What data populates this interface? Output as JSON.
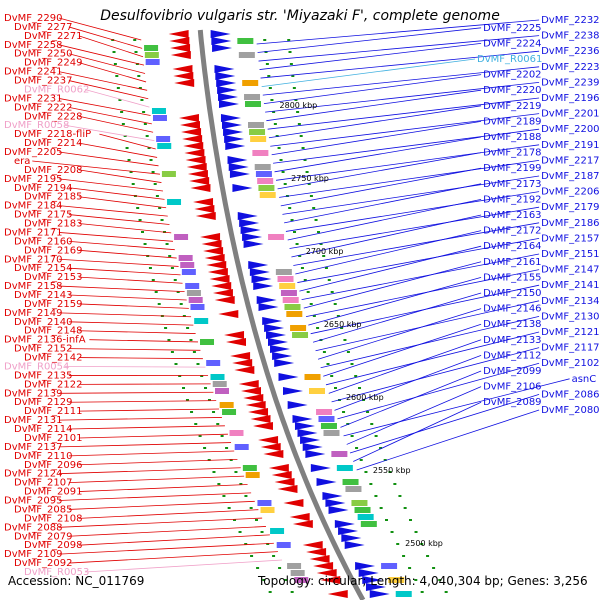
{
  "title": "Desulfovibrio vulgaris str. 'Miyazaki F', complete genome",
  "footer": {
    "accession": "Accession: NC_011769",
    "summary": "Topology: circular; Length: 4,040,304 bp; Genes: 3,256"
  },
  "colors": {
    "forward_strand": "#e00000",
    "reverse_strand": "#1010e0",
    "rna_gene": "#f0a0c8",
    "ncrna_gene": "#40b0e0",
    "backbone": "#808080",
    "tick_marks": "#109010"
  },
  "ticks": [
    "2800 kbp",
    "2750 kbp",
    "2700 kbp",
    "2650 kbp",
    "2600 kbp",
    "2550 kbp",
    "2500 kbp"
  ],
  "left_labels": [
    {
      "text": "DvMF_2290",
      "kind": "gene"
    },
    {
      "text": "DvMF_2277",
      "kind": "gene"
    },
    {
      "text": "DvMF_2271",
      "kind": "gene"
    },
    {
      "text": "DvMF_2258",
      "kind": "gene"
    },
    {
      "text": "DvMF_2250",
      "kind": "gene"
    },
    {
      "text": "DvMF_2249",
      "kind": "gene"
    },
    {
      "text": "DvMF_2241",
      "kind": "gene"
    },
    {
      "text": "DvMF_2237",
      "kind": "gene"
    },
    {
      "text": "DvMF_R0062",
      "kind": "rna"
    },
    {
      "text": "DvMF_2231",
      "kind": "gene"
    },
    {
      "text": "DvMF_2222",
      "kind": "gene"
    },
    {
      "text": "DvMF_2228",
      "kind": "gene"
    },
    {
      "text": "DvMF_R0058",
      "kind": "rna"
    },
    {
      "text": "DvMF_2218-fliP",
      "kind": "gene"
    },
    {
      "text": "DvMF_2214",
      "kind": "gene"
    },
    {
      "text": "DvMF_2205",
      "kind": "gene"
    },
    {
      "text": "era",
      "kind": "gene"
    },
    {
      "text": "DvMF_2208",
      "kind": "gene"
    },
    {
      "text": "DvMF_2195",
      "kind": "gene"
    },
    {
      "text": "DvMF_2194",
      "kind": "gene"
    },
    {
      "text": "DvMF_2185",
      "kind": "gene"
    },
    {
      "text": "DvMF_2184",
      "kind": "gene"
    },
    {
      "text": "DvMF_2175",
      "kind": "gene"
    },
    {
      "text": "DvMF_2183",
      "kind": "gene"
    },
    {
      "text": "DvMF_2171",
      "kind": "gene"
    },
    {
      "text": "DvMF_2160",
      "kind": "gene"
    },
    {
      "text": "DvMF_2169",
      "kind": "gene"
    },
    {
      "text": "DvMF_2170",
      "kind": "gene"
    },
    {
      "text": "DvMF_2154",
      "kind": "gene"
    },
    {
      "text": "DvMF_2153",
      "kind": "gene"
    },
    {
      "text": "DvMF_2158",
      "kind": "gene"
    },
    {
      "text": "DvMF_2143",
      "kind": "gene"
    },
    {
      "text": "DvMF_2159",
      "kind": "gene"
    },
    {
      "text": "DvMF_2149",
      "kind": "gene"
    },
    {
      "text": "DvMF_2140",
      "kind": "gene"
    },
    {
      "text": "DvMF_2148",
      "kind": "gene"
    },
    {
      "text": "DvMF_2136-infA",
      "kind": "gene"
    },
    {
      "text": "DvMF_2152",
      "kind": "gene"
    },
    {
      "text": "DvMF_2142",
      "kind": "gene"
    },
    {
      "text": "DvMF_R0054",
      "kind": "rna"
    },
    {
      "text": "DvMF_2135",
      "kind": "gene"
    },
    {
      "text": "DvMF_2122",
      "kind": "gene"
    },
    {
      "text": "DvMF_2139",
      "kind": "gene"
    },
    {
      "text": "DvMF_2129",
      "kind": "gene"
    },
    {
      "text": "DvMF_2111",
      "kind": "gene"
    },
    {
      "text": "DvMF_2131",
      "kind": "gene"
    },
    {
      "text": "DvMF_2114",
      "kind": "gene"
    },
    {
      "text": "DvMF_2101",
      "kind": "gene"
    },
    {
      "text": "DvMF_2137",
      "kind": "gene"
    },
    {
      "text": "DvMF_2110",
      "kind": "gene"
    },
    {
      "text": "DvMF_2096",
      "kind": "gene"
    },
    {
      "text": "DvMF_2124",
      "kind": "gene"
    },
    {
      "text": "DvMF_2107",
      "kind": "gene"
    },
    {
      "text": "DvMF_2091",
      "kind": "gene"
    },
    {
      "text": "DvMF_2095",
      "kind": "gene"
    },
    {
      "text": "DvMF_2085",
      "kind": "gene"
    },
    {
      "text": "DvMF_2108",
      "kind": "gene"
    },
    {
      "text": "DvMF_2088",
      "kind": "gene"
    },
    {
      "text": "DvMF_2079",
      "kind": "gene"
    },
    {
      "text": "DvMF_2098",
      "kind": "gene"
    },
    {
      "text": "DvMF_2109",
      "kind": "gene"
    },
    {
      "text": "DvMF_2092",
      "kind": "gene"
    },
    {
      "text": "DvMF_R0053",
      "kind": "rna"
    }
  ],
  "right_labels": [
    {
      "text": "DvMF_2232",
      "kind": "gene"
    },
    {
      "text": "DvMF_2225",
      "kind": "gene"
    },
    {
      "text": "DvMF_2238",
      "kind": "gene"
    },
    {
      "text": "DvMF_2224",
      "kind": "gene"
    },
    {
      "text": "DvMF_2236",
      "kind": "gene"
    },
    {
      "text": "DvMF_R0061",
      "kind": "ncrna"
    },
    {
      "text": "DvMF_2223",
      "kind": "gene"
    },
    {
      "text": "DvMF_2202",
      "kind": "gene"
    },
    {
      "text": "DvMF_2239",
      "kind": "gene"
    },
    {
      "text": "DvMF_2220",
      "kind": "gene"
    },
    {
      "text": "DvMF_2196",
      "kind": "gene"
    },
    {
      "text": "DvMF_2219",
      "kind": "gene"
    },
    {
      "text": "DvMF_2201",
      "kind": "gene"
    },
    {
      "text": "DvMF_2189",
      "kind": "gene"
    },
    {
      "text": "DvMF_2200",
      "kind": "gene"
    },
    {
      "text": "DvMF_2188",
      "kind": "gene"
    },
    {
      "text": "DvMF_2191",
      "kind": "gene"
    },
    {
      "text": "DvMF_2178",
      "kind": "gene"
    },
    {
      "text": "DvMF_2217",
      "kind": "gene"
    },
    {
      "text": "DvMF_2199",
      "kind": "gene"
    },
    {
      "text": "DvMF_2187",
      "kind": "gene"
    },
    {
      "text": "DvMF_2173",
      "kind": "gene"
    },
    {
      "text": "DvMF_2206",
      "kind": "gene"
    },
    {
      "text": "DvMF_2192",
      "kind": "gene"
    },
    {
      "text": "DvMF_2179",
      "kind": "gene"
    },
    {
      "text": "DvMF_2163",
      "kind": "gene"
    },
    {
      "text": "DvMF_2186",
      "kind": "gene"
    },
    {
      "text": "DvMF_2172",
      "kind": "gene"
    },
    {
      "text": "DvMF_2157",
      "kind": "gene"
    },
    {
      "text": "DvMF_2164",
      "kind": "gene"
    },
    {
      "text": "DvMF_2151",
      "kind": "gene"
    },
    {
      "text": "DvMF_2161",
      "kind": "gene"
    },
    {
      "text": "DvMF_2147",
      "kind": "gene"
    },
    {
      "text": "DvMF_2155",
      "kind": "gene"
    },
    {
      "text": "DvMF_2141",
      "kind": "gene"
    },
    {
      "text": "DvMF_2150",
      "kind": "gene"
    },
    {
      "text": "DvMF_2134",
      "kind": "gene"
    },
    {
      "text": "DvMF_2146",
      "kind": "gene"
    },
    {
      "text": "DvMF_2130",
      "kind": "gene"
    },
    {
      "text": "DvMF_2138",
      "kind": "gene"
    },
    {
      "text": "DvMF_2121",
      "kind": "gene"
    },
    {
      "text": "DvMF_2133",
      "kind": "gene"
    },
    {
      "text": "DvMF_2117",
      "kind": "gene"
    },
    {
      "text": "DvMF_2112",
      "kind": "gene"
    },
    {
      "text": "DvMF_2102",
      "kind": "gene"
    },
    {
      "text": "DvMF_2099",
      "kind": "gene"
    },
    {
      "text": "asnC",
      "kind": "gene"
    },
    {
      "text": "DvMF_2106",
      "kind": "gene"
    },
    {
      "text": "DvMF_2086",
      "kind": "gene"
    },
    {
      "text": "DvMF_2089",
      "kind": "gene"
    },
    {
      "text": "DvMF_2080",
      "kind": "gene"
    }
  ]
}
